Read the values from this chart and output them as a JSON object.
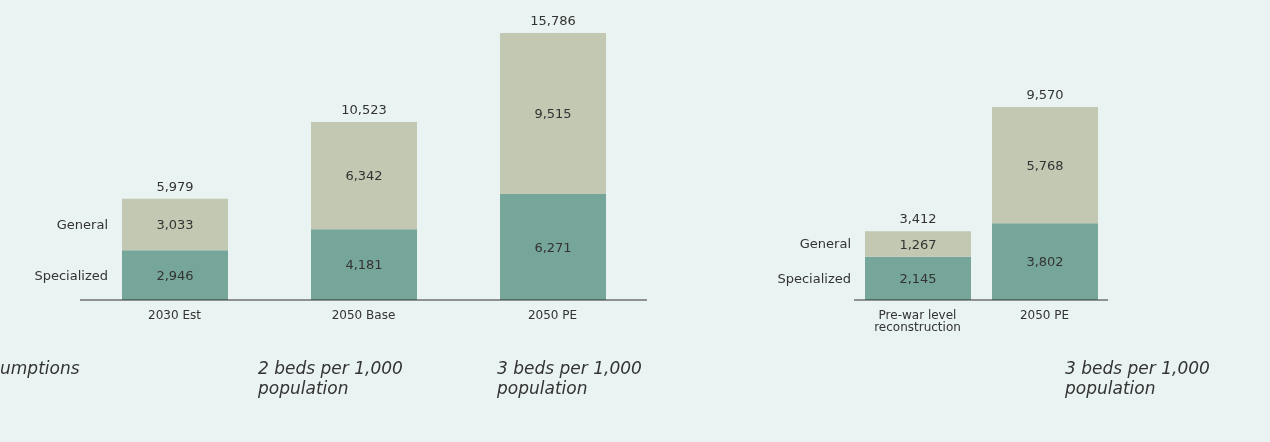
{
  "chart_data": [
    {
      "type": "bar",
      "stacked": true,
      "categories": [
        "2030 Est",
        "2050 Base",
        "2050 PE"
      ],
      "series": [
        {
          "name": "Specialized",
          "color": "#76a59a",
          "values": [
            2946,
            4181,
            6271
          ],
          "value_labels": [
            "2,946",
            "4,181",
            "6,271"
          ]
        },
        {
          "name": "General",
          "color": "#c2c8b2",
          "values": [
            3033,
            6342,
            9515
          ],
          "value_labels": [
            "3,033",
            "6,342",
            "9,515"
          ]
        }
      ],
      "totals": [
        "5,979",
        "10,523",
        "15,786"
      ],
      "tick_labels": "x",
      "annotations": [
        "umptions",
        "2 beds per 1,000 population",
        "3 beds per 1,000 population"
      ]
    },
    {
      "type": "bar",
      "stacked": true,
      "categories": [
        "Pre-war level reconstruction",
        "2050 PE"
      ],
      "series": [
        {
          "name": "Specialized",
          "color": "#76a59a",
          "values": [
            2145,
            3802
          ],
          "value_labels": [
            "2,145",
            "3,802"
          ]
        },
        {
          "name": "General",
          "color": "#c2c8b2",
          "values": [
            1267,
            5768
          ],
          "value_labels": [
            "1,267",
            "5,768"
          ]
        }
      ],
      "totals": [
        "3,412",
        "9,570"
      ],
      "tick_labels": "x",
      "annotations": [
        "3 beds per 1,000 population"
      ]
    }
  ]
}
